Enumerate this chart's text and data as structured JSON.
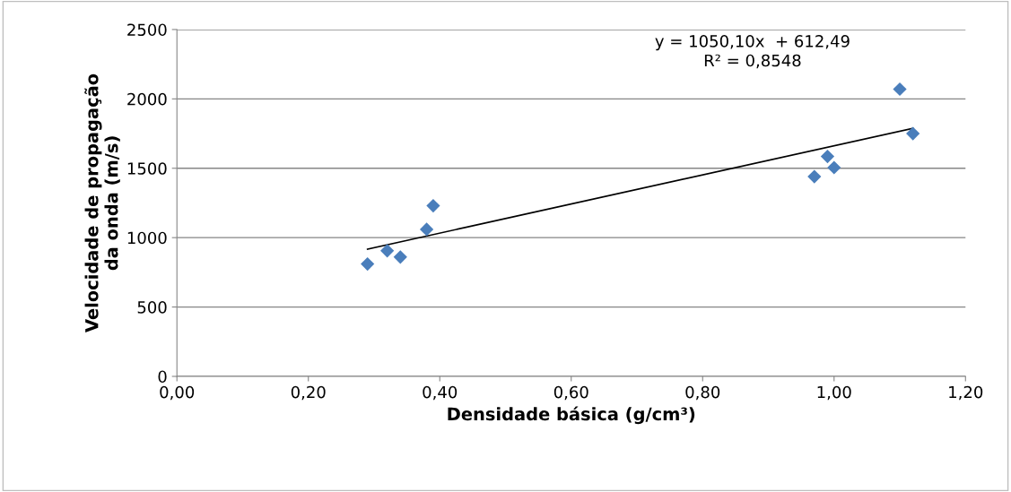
{
  "chart_data": {
    "type": "scatter",
    "xlabel": "Densidade básica (g/cm³)",
    "ylabel": "Velocidade de propagação\nda onda (m/s)",
    "xlim": [
      0,
      1.2
    ],
    "xticks": [
      {
        "value": 0,
        "label": "0,00"
      },
      {
        "value": 0.2,
        "label": "0,20"
      },
      {
        "value": 0.4,
        "label": "0,40"
      },
      {
        "value": 0.6,
        "label": "0,60"
      },
      {
        "value": 0.8,
        "label": "0,80"
      },
      {
        "value": 1.0,
        "label": "1,00"
      },
      {
        "value": 1.2,
        "label": "1,20"
      }
    ],
    "ylim": [
      0,
      2500
    ],
    "yticks": [
      0,
      500,
      1000,
      1500,
      2000,
      2500
    ],
    "grid": "y",
    "marker": "diamond",
    "series": [
      {
        "color": "#4a7ebb",
        "x": [
          0.29,
          0.32,
          0.34,
          0.38,
          0.39,
          0.97,
          0.99,
          1.0,
          1.1,
          1.12
        ],
        "values": [
          810,
          905,
          860,
          1060,
          1230,
          1440,
          1585,
          1505,
          2070,
          1750
        ]
      },
      {
        "type": "line",
        "marker": "none",
        "color": "#000000",
        "x": [
          0.29,
          1.12
        ],
        "values": [
          917,
          1788
        ]
      }
    ],
    "annotations": [
      "y = 1050,10x  + 612,49\nR² = 0,8548"
    ]
  }
}
